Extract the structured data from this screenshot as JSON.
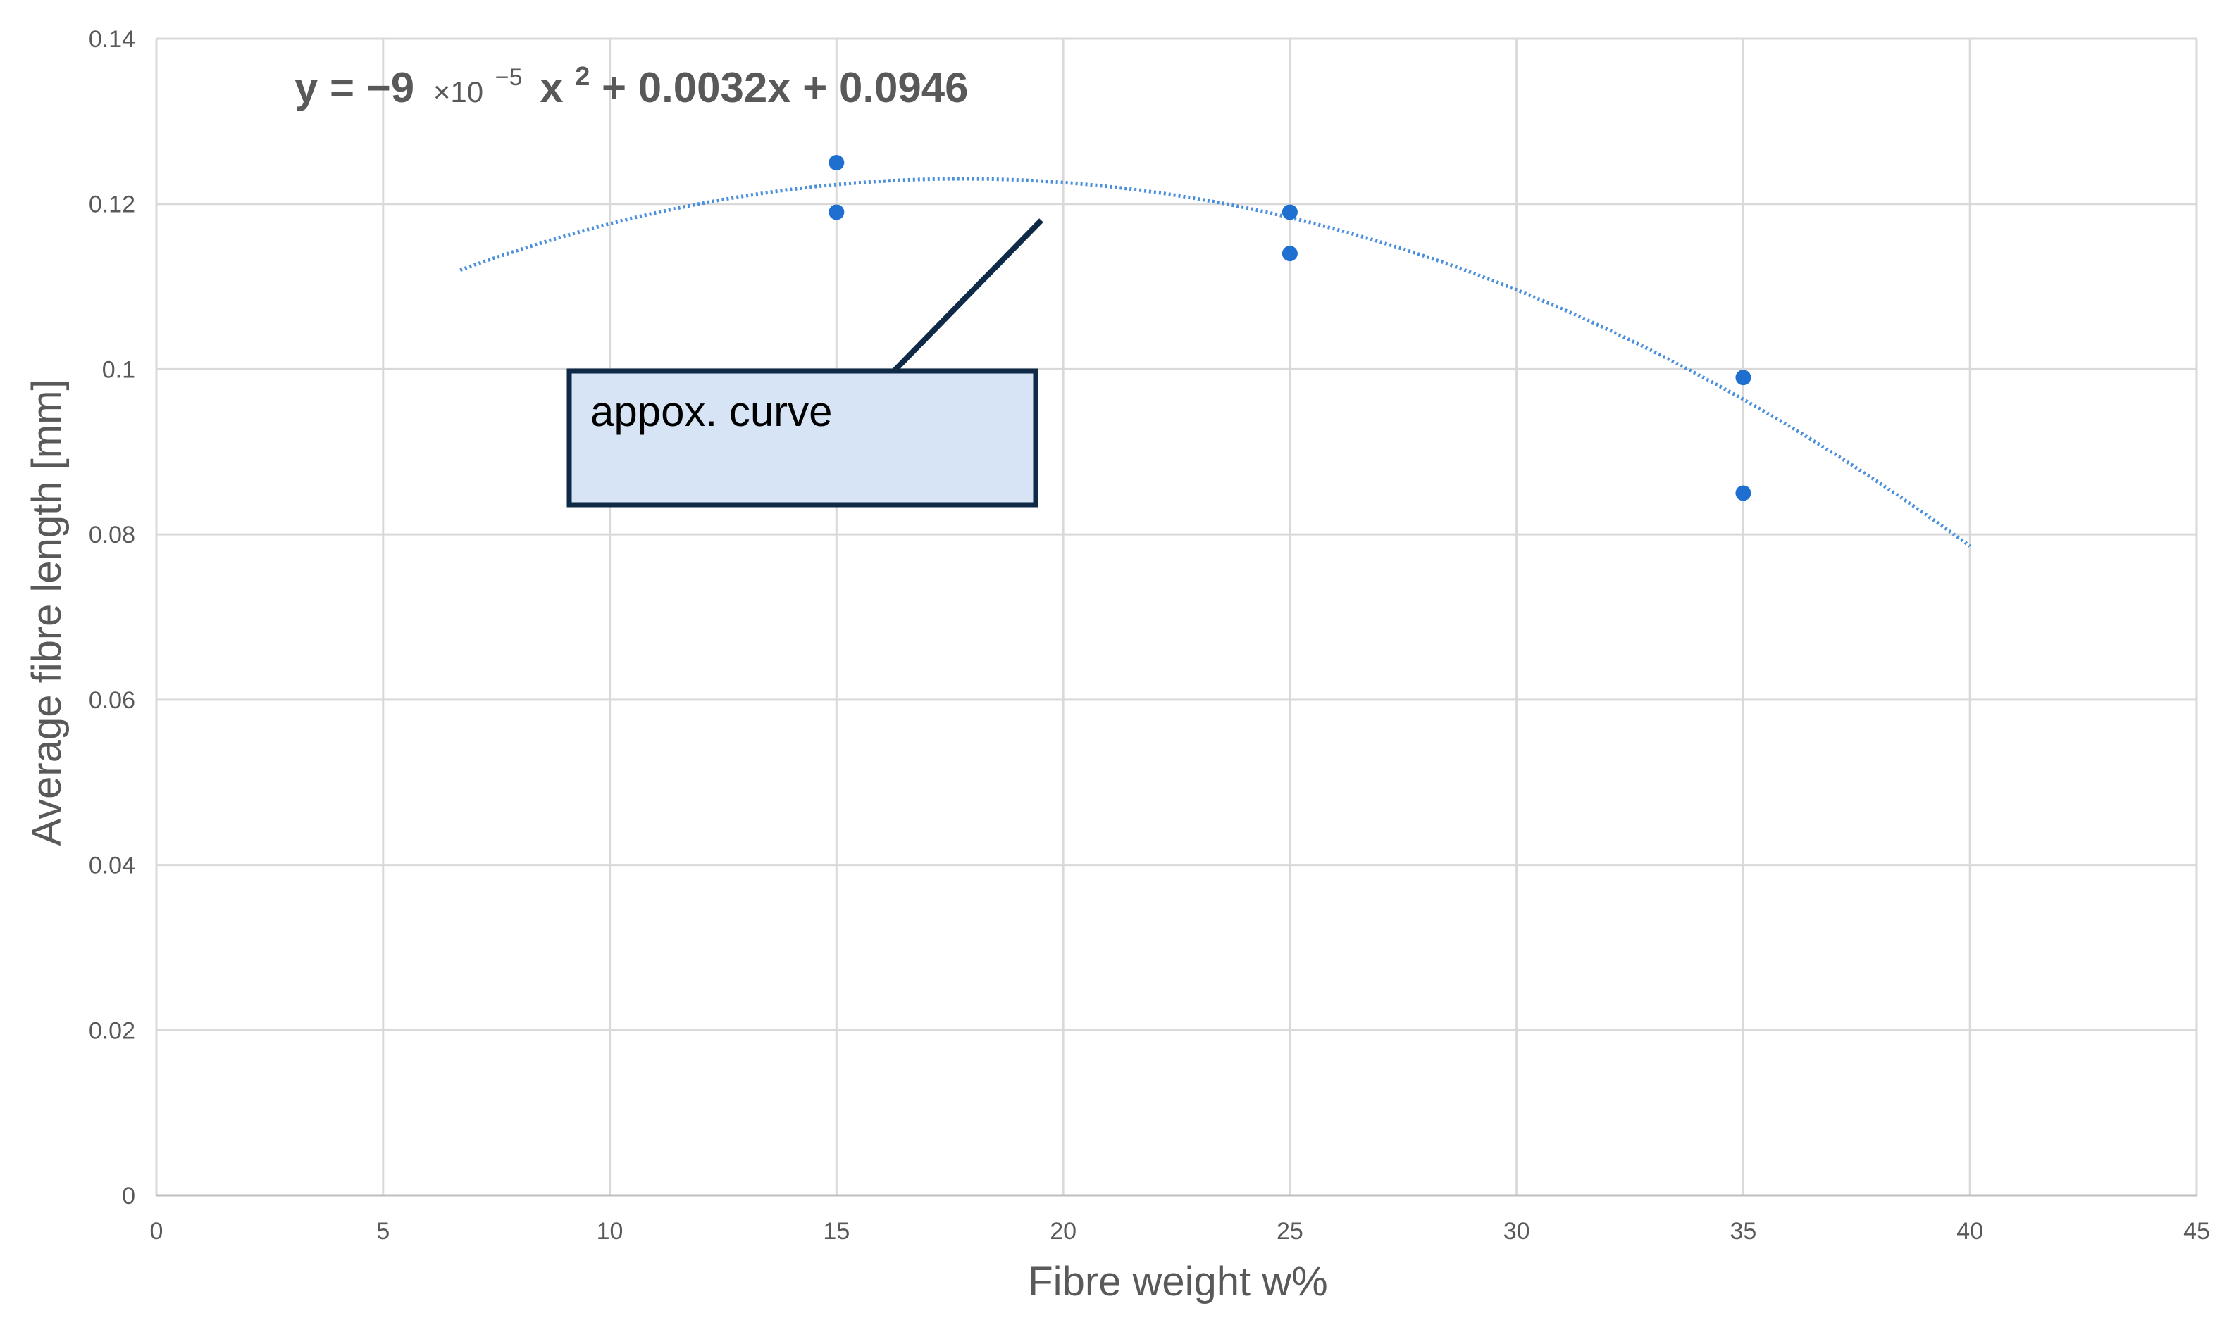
{
  "chart_data": {
    "type": "scatter",
    "xlabel": "Fibre weight w%",
    "ylabel": "Average fibre length [mm]",
    "xlim": [
      0,
      45
    ],
    "ylim": [
      0,
      0.14
    ],
    "x_ticks": [
      "0",
      "5",
      "10",
      "15",
      "20",
      "25",
      "30",
      "35",
      "40",
      "45"
    ],
    "y_ticks": [
      "0",
      "0.02",
      "0.04",
      "0.06",
      "0.08",
      "0.1",
      "0.12",
      "0.14"
    ],
    "grid": true,
    "series": [
      {
        "points": [
          {
            "x": 15,
            "y": 0.125
          },
          {
            "x": 15,
            "y": 0.119
          },
          {
            "x": 25,
            "y": 0.119
          },
          {
            "x": 25,
            "y": 0.114
          },
          {
            "x": 35,
            "y": 0.099
          },
          {
            "x": 35,
            "y": 0.085
          }
        ],
        "color": "#1f6fd1"
      }
    ],
    "trendline": {
      "type": "polynomial-2",
      "coefficients": {
        "a": -9e-05,
        "b": 0.0032,
        "c": 0.0946
      },
      "x_range": [
        6.7,
        40
      ],
      "style": "dotted",
      "color": "#4a8fdc"
    },
    "equation": {
      "prefix": "y = −9",
      "times": "×10",
      "exponent": "−5",
      "x2": "x",
      "x2_exp": "2",
      "rest": " + 0.0032x + 0.0946"
    },
    "annotation": {
      "text": "appox. curve",
      "fill": "#d6e4f5",
      "border": "#0e2a47"
    }
  }
}
